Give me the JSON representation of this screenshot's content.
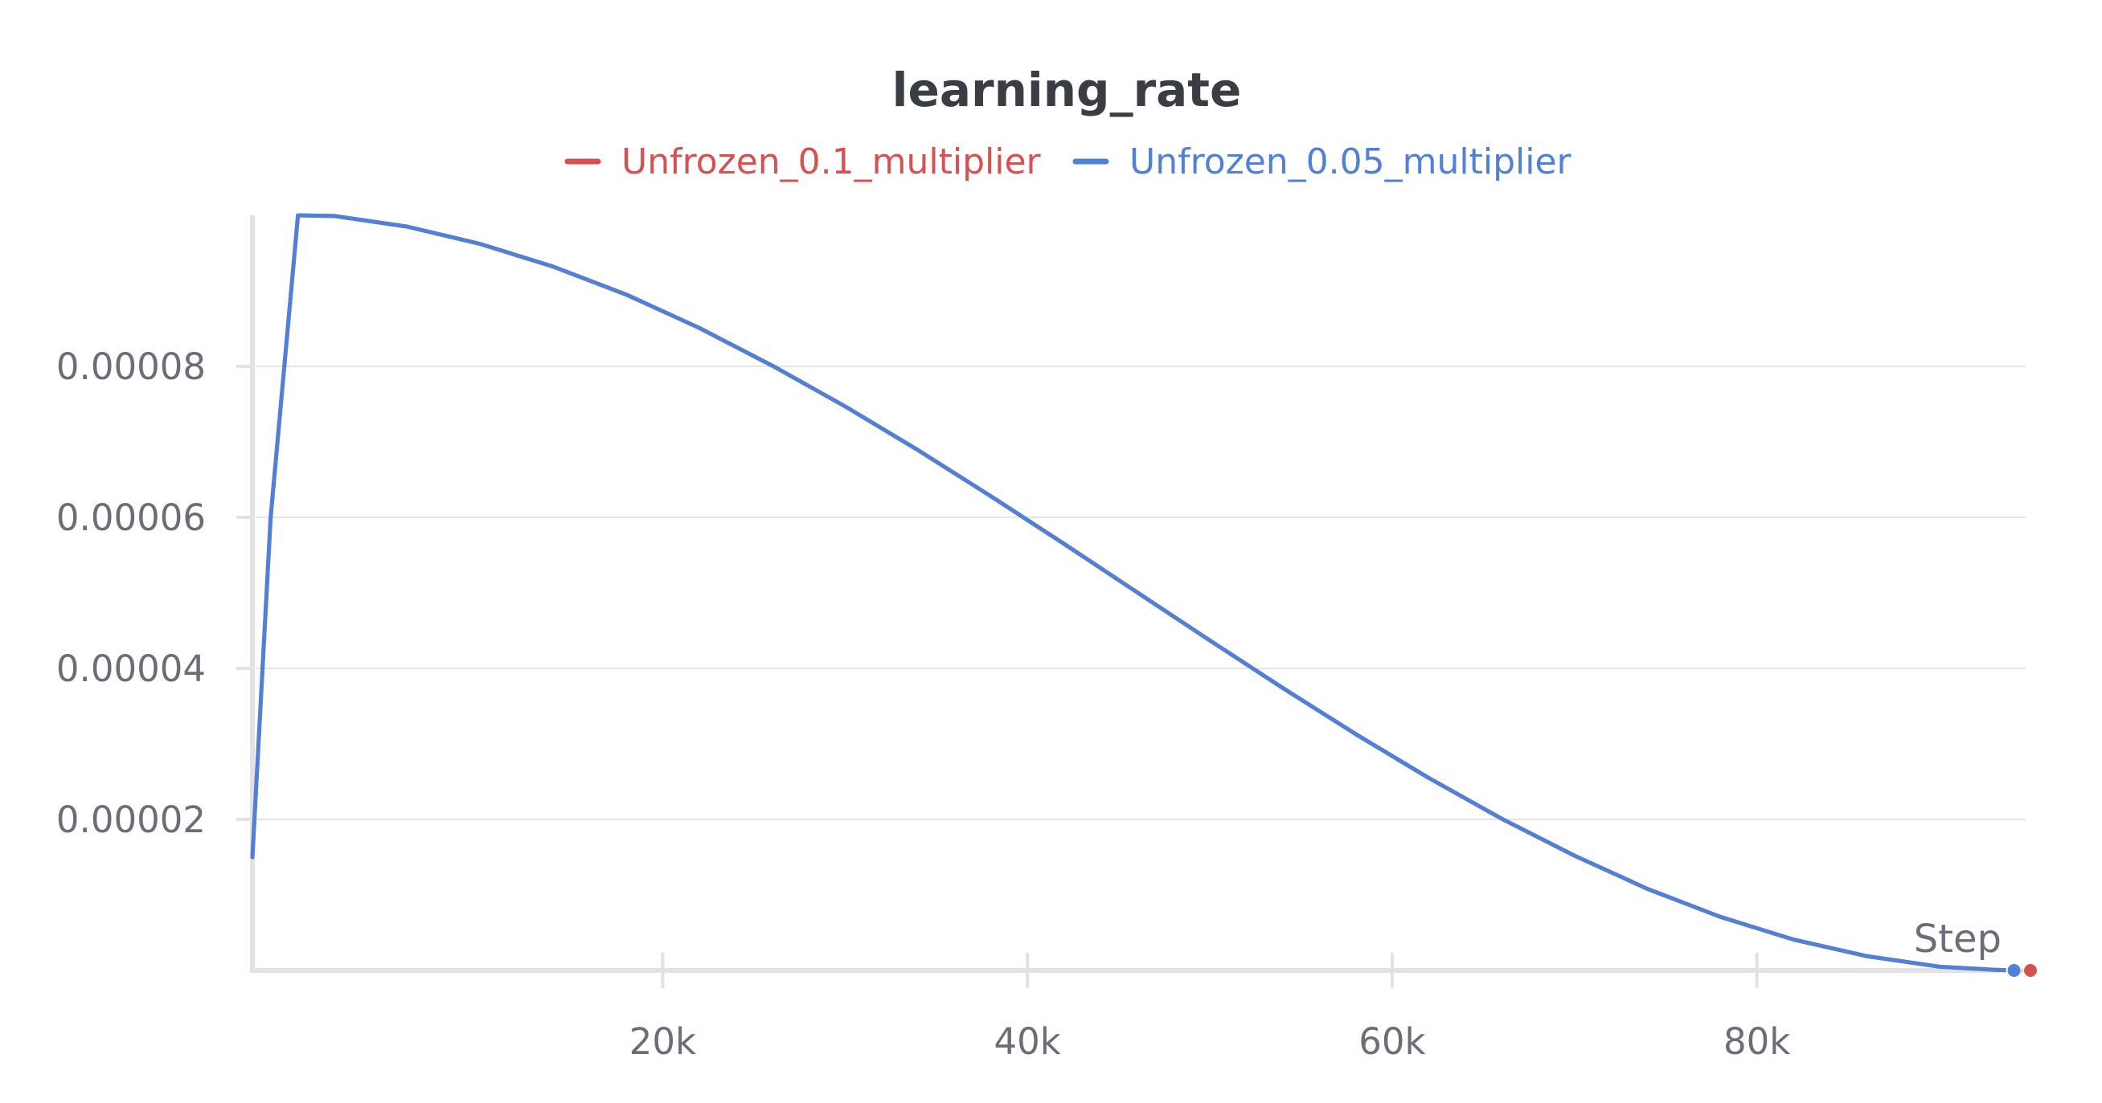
{
  "chart_data": {
    "type": "line",
    "title": "learning_rate",
    "xlabel": "Step",
    "ylabel": "",
    "xlim": [
      -2500,
      95000
    ],
    "ylim": [
      0,
      0.0001
    ],
    "x_ticks": [
      {
        "value": 20000,
        "label": "20k"
      },
      {
        "value": 40000,
        "label": "40k"
      },
      {
        "value": 60000,
        "label": "60k"
      },
      {
        "value": 80000,
        "label": "80k"
      }
    ],
    "y_ticks": [
      {
        "value": 2e-05,
        "label": "0.00002"
      },
      {
        "value": 4e-05,
        "label": "0.00004"
      },
      {
        "value": 6e-05,
        "label": "0.00006"
      },
      {
        "value": 8e-05,
        "label": "0.00008"
      }
    ],
    "grid": true,
    "legend_position": "top",
    "series": [
      {
        "name": "Unfrozen_0.1_multiplier",
        "color": "#d65151",
        "x": [
          -2500,
          -1500,
          0,
          2000,
          6000,
          10000,
          14000,
          18000,
          22000,
          26000,
          30000,
          34000,
          38000,
          42000,
          46000,
          50000,
          54000,
          58000,
          62000,
          66000,
          70000,
          74000,
          78000,
          82000,
          86000,
          90000,
          93000,
          94100,
          95000
        ],
        "y": [
          1.5e-05,
          6e-05,
          0.0001,
          9.99e-05,
          9.85e-05,
          9.62e-05,
          9.32e-05,
          8.95e-05,
          8.51e-05,
          8.01e-05,
          7.47e-05,
          6.89e-05,
          6.28e-05,
          5.65e-05,
          5.01e-05,
          4.37e-05,
          3.74e-05,
          3.13e-05,
          2.55e-05,
          2.01e-05,
          1.52e-05,
          1.08e-05,
          7.1e-06,
          4.1e-06,
          1.9e-06,
          5e-07,
          1e-07,
          0.0,
          0.0
        ]
      },
      {
        "name": "Unfrozen_0.05_multiplier",
        "color": "#5181d6",
        "x": [
          -2500,
          -1500,
          0,
          2000,
          6000,
          10000,
          14000,
          18000,
          22000,
          26000,
          30000,
          34000,
          38000,
          42000,
          46000,
          50000,
          54000,
          58000,
          62000,
          66000,
          70000,
          74000,
          78000,
          82000,
          86000,
          90000,
          93000,
          94100
        ],
        "y": [
          1.5e-05,
          6e-05,
          0.0001,
          9.99e-05,
          9.85e-05,
          9.62e-05,
          9.32e-05,
          8.95e-05,
          8.51e-05,
          8.01e-05,
          7.47e-05,
          6.89e-05,
          6.28e-05,
          5.65e-05,
          5.01e-05,
          4.37e-05,
          3.74e-05,
          3.13e-05,
          2.55e-05,
          2.01e-05,
          1.52e-05,
          1.08e-05,
          7.1e-06,
          4.1e-06,
          1.9e-06,
          5e-07,
          1e-07,
          0.0
        ]
      }
    ]
  }
}
